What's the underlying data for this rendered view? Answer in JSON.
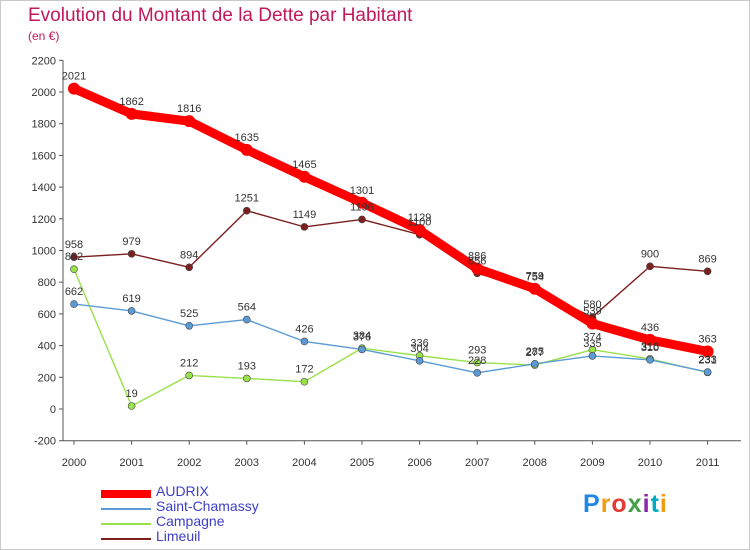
{
  "header": {
    "title": "Evolution du Montant de la Dette par Habitant",
    "subtitle": "(en €)"
  },
  "logo": {
    "text": "Proxiti",
    "colors": [
      "#1e88e5",
      "#f39c12",
      "#e53935",
      "#43a047",
      "#8e24aa",
      "#00acc1",
      "#f39c12"
    ]
  },
  "chart_data": {
    "type": "line",
    "title": "Evolution du Montant de la Dette par Habitant",
    "subtitle": "(en €)",
    "xlabel": "",
    "ylabel": "",
    "x": [
      "2000",
      "2001",
      "2002",
      "2003",
      "2004",
      "2005",
      "2006",
      "2007",
      "2008",
      "2009",
      "2010",
      "2011"
    ],
    "ylim": [
      -200,
      2200
    ],
    "yticks": [
      -200,
      0,
      200,
      400,
      600,
      800,
      1000,
      1200,
      1400,
      1600,
      1800,
      2000,
      2200
    ],
    "grid": false,
    "legend_position": "bottom-left",
    "series": [
      {
        "name": "AUDRIX",
        "color": "#ff0000",
        "values": [
          2021,
          1862,
          1816,
          1635,
          1465,
          1301,
          1129,
          886,
          759,
          539,
          436,
          363
        ],
        "labels": [
          "2021",
          "1862",
          "1816",
          "1635",
          "1465",
          "1301",
          "1129",
          "886",
          "759",
          "539",
          "436",
          "363"
        ]
      },
      {
        "name": "Saint-Chamassy",
        "color": "#5b9bd5",
        "values": [
          662,
          619,
          525,
          564,
          426,
          376,
          304,
          228,
          285,
          335,
          310,
          233
        ],
        "labels": [
          "662",
          "619",
          "525",
          "564",
          "426",
          "376",
          "304",
          "228",
          "285",
          "335",
          "310",
          "233"
        ]
      },
      {
        "name": "Campagne",
        "color": "#99e14a",
        "values": [
          882,
          19,
          212,
          193,
          172,
          384,
          336,
          293,
          277,
          374,
          316,
          231
        ],
        "labels": [
          "882",
          "19",
          "212",
          "193",
          "172",
          "384",
          "336",
          "293",
          "277",
          "374",
          "316",
          "231"
        ]
      },
      {
        "name": "Limeuil",
        "color": "#7b1f1f",
        "values": [
          958,
          979,
          894,
          1251,
          1149,
          1196,
          1100,
          856,
          754,
          580,
          900,
          869
        ],
        "labels": [
          "958",
          "979",
          "894",
          "1251",
          "1149",
          "1196",
          "1100",
          "856",
          "754",
          "580",
          "900",
          "869"
        ]
      }
    ]
  }
}
